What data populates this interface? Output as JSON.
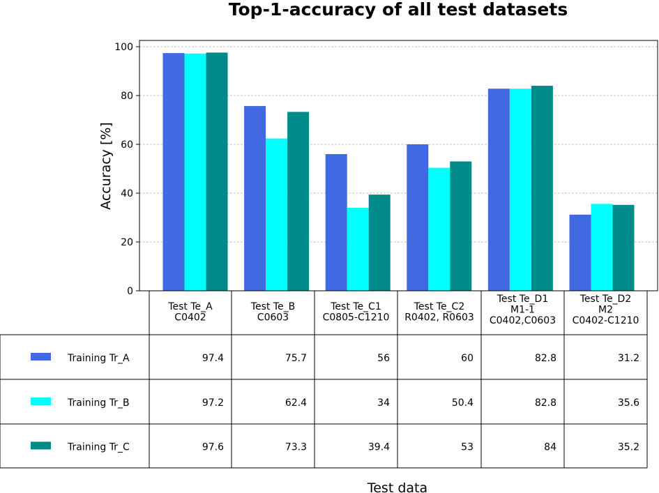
{
  "chart_data": {
    "type": "bar",
    "title": "Top-1-accuracy of all test datasets",
    "xlabel": "Test data",
    "ylabel": "Accuracy [%]",
    "ylim": [
      0,
      100
    ],
    "yticks": [
      "0",
      "20",
      "40",
      "60",
      "80",
      "100"
    ],
    "grid": "horizontal dashed",
    "categories": [
      [
        "Test Te_A",
        "C0402"
      ],
      [
        "Test Te_B",
        "C0603"
      ],
      [
        "Test Te_C1",
        "C0805-C1210"
      ],
      [
        "Test Te_C2",
        "R0402, R0603"
      ],
      [
        "Test Te_D1",
        "M1-1",
        "C0402,C0603"
      ],
      [
        "Test Te_D2",
        "M2",
        "C0402-C1210"
      ]
    ],
    "series": [
      {
        "name": "Training Tr_A",
        "color": "#4169e1",
        "values": [
          97.4,
          75.7,
          56,
          60,
          82.8,
          31.2
        ]
      },
      {
        "name": "Training Tr_B",
        "color": "#00ffff",
        "values": [
          97.2,
          62.4,
          34,
          50.4,
          82.8,
          35.6
        ]
      },
      {
        "name": "Training Tr_C",
        "color": "#008b8b",
        "values": [
          97.6,
          73.3,
          39.4,
          53,
          84,
          35.2
        ]
      }
    ],
    "legend": "table-rows"
  }
}
